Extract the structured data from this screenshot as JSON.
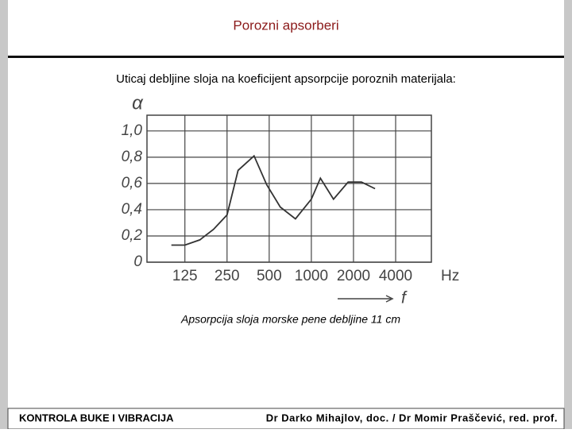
{
  "slide": {
    "title": "Porozni apsorberi",
    "subtitle": "Uticaj debljine sloja na koeficijent apsorpcije poroznih materijala:",
    "caption": "Apsorpcija sloja morske pene debljine 11 cm",
    "footer_left": "KONTROLA BUKE I VIBRACIJA",
    "footer_right": "Dr Darko Mihajlov, doc. / Dr Momir Praščević, red. prof."
  },
  "chart_data": {
    "type": "line",
    "y_label": "α",
    "x_unit": "Hz",
    "x_label": "f",
    "x": [
      100,
      125,
      160,
      200,
      250,
      300,
      390,
      480,
      600,
      770,
      1000,
      1160,
      1440,
      1830,
      2280,
      2850
    ],
    "values": [
      0.13,
      0.13,
      0.17,
      0.25,
      0.36,
      0.7,
      0.81,
      0.59,
      0.42,
      0.33,
      0.48,
      0.64,
      0.48,
      0.61,
      0.61,
      0.56
    ],
    "color": "#333333",
    "xscale": "log",
    "xlim": [
      67,
      7200
    ],
    "xticks": [
      125,
      250,
      500,
      1000,
      2000,
      4000
    ],
    "ylim": [
      0,
      1.12
    ],
    "yticks": [
      0,
      {
        "value": 0.2,
        "label": "0,2"
      },
      {
        "value": 0.4,
        "label": "0,4"
      },
      {
        "value": 0.6,
        "label": "0,6"
      },
      {
        "value": 0.8,
        "label": "0,8"
      },
      {
        "value": 1,
        "label": "1,0"
      }
    ],
    "grid": true
  }
}
